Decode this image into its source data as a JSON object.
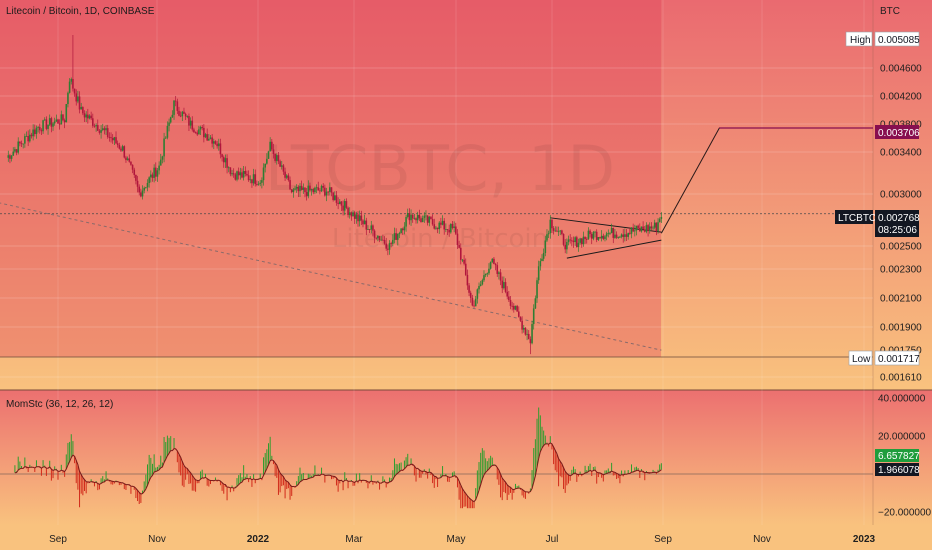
{
  "header": {
    "title": "Litecoin / Bitcoin, 1D, COINBASE"
  },
  "watermark": {
    "symbol": "LTCBTC, 1D",
    "name": "Litecoin / Bitcoin"
  },
  "price_axis": {
    "currency": "BTC",
    "ticks": [
      "0.004600",
      "0.004200",
      "0.003800",
      "0.003400",
      "0.003000",
      "0.002500",
      "0.002300",
      "0.002100",
      "0.001900",
      "0.001750",
      "0.001610"
    ]
  },
  "tags": {
    "high": {
      "label": "High",
      "value": "0.005085"
    },
    "target": {
      "value": "0.003706"
    },
    "current": {
      "symbol": "LTCBTC",
      "value": "0.002768",
      "countdown": "08:25:06"
    },
    "low": {
      "label": "Low",
      "value": "0.001717"
    }
  },
  "indicator": {
    "title": "MomStc (36, 12, 26, 12)",
    "ticks": [
      "40.000000",
      "20.000000",
      "−20.000000"
    ],
    "value1": "6.657827",
    "value2": "1.966078"
  },
  "time_axis": [
    "Sep",
    "Nov",
    "2022",
    "Mar",
    "May",
    "Jul",
    "Sep",
    "Nov",
    "2023"
  ],
  "colors": {
    "up": "#2e7d32",
    "down": "#b0163c",
    "indicator_up": "#2e9d2e",
    "indicator_down": "#d12a1a",
    "target": "#880e4f",
    "current_tag": "#131722",
    "indicator_tag": "#1f9d3c"
  },
  "chart_data": {
    "type": "candlestick",
    "title": "Litecoin / Bitcoin, 1D, COINBASE",
    "y_axis_unit": "BTC",
    "x_range": [
      "2021-08",
      "2023-01"
    ],
    "anchors": [
      {
        "date": "2021-08-01",
        "close": 0.00335
      },
      {
        "date": "2021-08-20",
        "close": 0.00372
      },
      {
        "date": "2021-09-05",
        "close": 0.00382
      },
      {
        "date": "2021-09-08",
        "close": 0.0044
      },
      {
        "date": "2021-09-15",
        "close": 0.00392
      },
      {
        "date": "2021-10-10",
        "close": 0.00345
      },
      {
        "date": "2021-10-20",
        "close": 0.00297
      },
      {
        "date": "2021-11-01",
        "close": 0.00325
      },
      {
        "date": "2021-11-10",
        "close": 0.00402
      },
      {
        "date": "2021-11-20",
        "close": 0.00375
      },
      {
        "date": "2021-12-05",
        "close": 0.00355
      },
      {
        "date": "2021-12-15",
        "close": 0.00318
      },
      {
        "date": "2022-01-01",
        "close": 0.0031
      },
      {
        "date": "2022-01-07",
        "close": 0.00348
      },
      {
        "date": "2022-01-20",
        "close": 0.00298
      },
      {
        "date": "2022-02-10",
        "close": 0.003
      },
      {
        "date": "2022-03-01",
        "close": 0.00272
      },
      {
        "date": "2022-03-20",
        "close": 0.00248
      },
      {
        "date": "2022-04-01",
        "close": 0.00276
      },
      {
        "date": "2022-04-15",
        "close": 0.00268
      },
      {
        "date": "2022-04-28",
        "close": 0.00262
      },
      {
        "date": "2022-05-09",
        "close": 0.00202
      },
      {
        "date": "2022-05-20",
        "close": 0.00236
      },
      {
        "date": "2022-06-05",
        "close": 0.00196
      },
      {
        "date": "2022-06-13",
        "close": 0.0018
      },
      {
        "date": "2022-06-18",
        "close": 0.0023
      },
      {
        "date": "2022-06-25",
        "close": 0.0027
      },
      {
        "date": "2022-07-05",
        "close": 0.00248
      },
      {
        "date": "2022-07-20",
        "close": 0.00258
      },
      {
        "date": "2022-08-10",
        "close": 0.0026
      },
      {
        "date": "2022-08-28",
        "close": 0.00265
      },
      {
        "date": "2022-08-31",
        "close": 0.002768
      }
    ],
    "high": {
      "date": "2021-09-10",
      "value": 0.005085
    },
    "low": {
      "date": "2022-06-13",
      "value": 0.001717
    },
    "last": {
      "value": 0.002768
    },
    "projection": {
      "from": {
        "date": "2022-08-31",
        "value": 0.00259
      },
      "to": {
        "date": "2022-10-05",
        "value": 0.003706
      }
    },
    "triangle": {
      "upper": [
        [
          "2022-06-25",
          0.00273
        ],
        [
          "2022-08-31",
          0.0026
        ]
      ],
      "lower": [
        [
          "2022-07-05",
          0.00238
        ],
        [
          "2022-08-31",
          0.00253
        ]
      ]
    },
    "trendline": [
      [
        "2021-08-01",
        0.0029
      ],
      [
        "2022-08-31",
        0.00174
      ]
    ],
    "indicator_series": {
      "name": "MomStc (36, 12, 26, 12)",
      "last": 6.657827,
      "signal": 1.966078
    }
  }
}
